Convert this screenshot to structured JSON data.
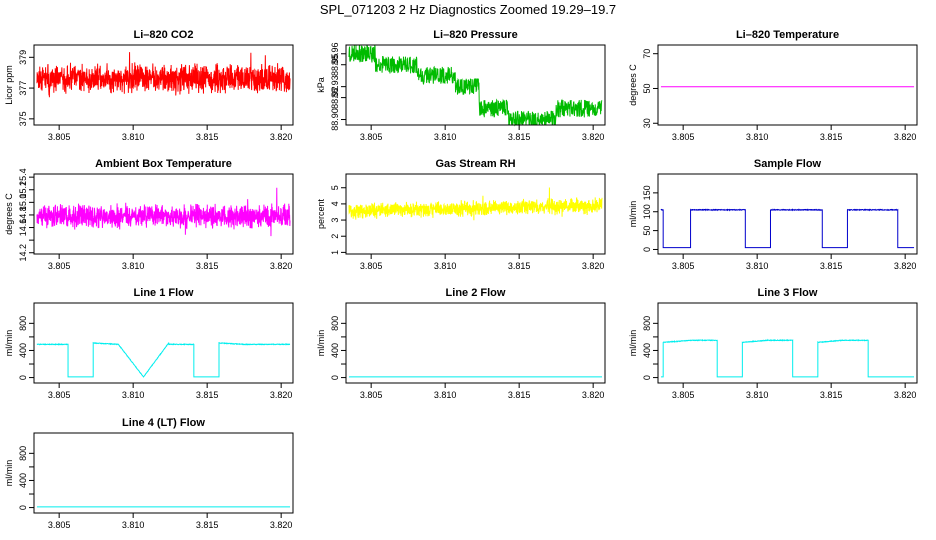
{
  "title": "SPL_071203  2 Hz Diagnostics Zoomed 19.29–19.7",
  "chart_data": [
    {
      "type": "line",
      "title": "Li–820 CO2",
      "ylabel": "Licor ppm",
      "color": "#ff0000",
      "xlim": [
        3.8033,
        3.8208
      ],
      "ylim": [
        374.6,
        379.8
      ],
      "xticks": [
        3.805,
        3.81,
        3.815,
        3.82
      ],
      "xtick_labels": [
        "3.805",
        "3.810",
        "3.815",
        "3.820"
      ],
      "yticks": [
        375,
        377,
        379
      ],
      "ytick_labels": [
        "375",
        "377",
        "379"
      ],
      "noise": {
        "mean": 377.6,
        "amp": 1.1,
        "seed": 11
      }
    },
    {
      "type": "line",
      "title": "Li–820 Pressure",
      "ylabel": "kPa",
      "color": "#00bb00",
      "xlim": [
        3.8033,
        3.8208
      ],
      "ylim": [
        88.895,
        88.968
      ],
      "xticks": [
        3.805,
        3.81,
        3.815,
        3.82
      ],
      "xtick_labels": [
        "3.805",
        "3.810",
        "3.815",
        "3.820"
      ],
      "yticks": [
        88.9,
        88.92,
        88.93,
        88.95,
        88.96
      ],
      "ytick_labels": [
        "88.90",
        "88.92",
        "88.93",
        "88.95",
        "88.96"
      ],
      "steps": [
        [
          3.8035,
          3.8053,
          88.96
        ],
        [
          3.8053,
          3.8081,
          88.95
        ],
        [
          3.8081,
          3.8107,
          88.94
        ],
        [
          3.8107,
          3.8123,
          88.93
        ],
        [
          3.8123,
          3.8143,
          88.91
        ],
        [
          3.8143,
          3.8175,
          88.9
        ],
        [
          3.8175,
          3.8206,
          88.91
        ]
      ],
      "noise": {
        "amp": 0.008,
        "seed": 23
      }
    },
    {
      "type": "line",
      "title": "Li–820 Temperature",
      "ylabel": "degrees C",
      "color": "#ff00ff",
      "xlim": [
        3.8033,
        3.8208
      ],
      "ylim": [
        29,
        75
      ],
      "xticks": [
        3.805,
        3.81,
        3.815,
        3.82
      ],
      "xtick_labels": [
        "3.805",
        "3.810",
        "3.815",
        "3.820"
      ],
      "yticks": [
        30,
        50,
        70
      ],
      "ytick_labels": [
        "30",
        "50",
        "70"
      ],
      "x": [
        3.8035,
        3.8206
      ],
      "y": [
        51,
        51
      ]
    },
    {
      "type": "line",
      "title": "Ambient Box Temperature",
      "ylabel": "degrees C",
      "color": "#ff00ff",
      "xlim": [
        3.8033,
        3.8208
      ],
      "ylim": [
        14.18,
        15.45
      ],
      "xticks": [
        3.805,
        3.81,
        3.815,
        3.82
      ],
      "xtick_labels": [
        "3.805",
        "3.810",
        "3.815",
        "3.820"
      ],
      "yticks": [
        14.2,
        14.4,
        14.6,
        14.8,
        15.0,
        15.2,
        15.4
      ],
      "ytick_labels": [
        "14.2",
        "",
        "14.6",
        "14.8",
        "15.0",
        "15.2",
        "15.4"
      ],
      "noise": {
        "mean": 14.78,
        "amp": 0.22,
        "seed": 37
      }
    },
    {
      "type": "line",
      "title": "Gas Stream RH",
      "ylabel": "percent",
      "color": "#ffff00",
      "xlim": [
        3.8033,
        3.8208
      ],
      "ylim": [
        0.9,
        5.85
      ],
      "xticks": [
        3.805,
        3.81,
        3.815,
        3.82
      ],
      "xtick_labels": [
        "3.805",
        "3.810",
        "3.815",
        "3.820"
      ],
      "yticks": [
        1,
        2,
        3,
        4,
        5
      ],
      "ytick_labels": [
        "1",
        "2",
        "3",
        "4",
        "5"
      ],
      "noise": {
        "mean": 3.55,
        "trend": 0.35,
        "amp": 0.55,
        "seed": 51
      }
    },
    {
      "type": "line",
      "title": "Sample Flow",
      "ylabel": "ml/min",
      "color": "#0000cc",
      "xlim": [
        3.8033,
        3.8208
      ],
      "ylim": [
        -12,
        200
      ],
      "xticks": [
        3.805,
        3.81,
        3.815,
        3.82
      ],
      "xtick_labels": [
        "3.805",
        "3.810",
        "3.815",
        "3.820"
      ],
      "yticks": [
        0,
        50,
        100,
        150
      ],
      "ytick_labels": [
        "0",
        "50",
        "100",
        "150"
      ],
      "x": [
        3.8035,
        3.80365,
        3.80365,
        3.8055,
        3.8055,
        3.8092,
        3.8092,
        3.8109,
        3.8109,
        3.8144,
        3.8144,
        3.8161,
        3.8161,
        3.8195,
        3.8195,
        3.8206
      ],
      "y": [
        105,
        105,
        5,
        5,
        105,
        105,
        5,
        5,
        105,
        105,
        5,
        5,
        105,
        105,
        5,
        5
      ],
      "noise": {
        "amp": 2,
        "seed": 61
      }
    },
    {
      "type": "line",
      "title": "Line 1 Flow",
      "ylabel": "ml/min",
      "color": "#00eeee",
      "xlim": [
        3.8033,
        3.8208
      ],
      "ylim": [
        -80,
        1100
      ],
      "xticks": [
        3.805,
        3.81,
        3.815,
        3.82
      ],
      "xtick_labels": [
        "3.805",
        "3.810",
        "3.815",
        "3.820"
      ],
      "yticks": [
        0,
        200,
        400,
        600,
        800
      ],
      "ytick_labels": [
        "0",
        "",
        "400",
        "",
        "800"
      ],
      "x": [
        3.8035,
        3.8056,
        3.8056,
        3.8073,
        3.8073,
        3.809,
        3.809,
        3.8107,
        3.8107,
        3.8124,
        3.8124,
        3.8141,
        3.8141,
        3.8158,
        3.8158,
        3.8175,
        3.8175,
        3.8206
      ],
      "y": [
        490,
        490,
        10,
        10,
        510,
        490,
        490,
        10,
        10,
        510,
        490,
        490,
        10,
        10,
        510,
        490,
        490,
        490
      ],
      "noise": {
        "amp": 10,
        "seed": 71
      }
    },
    {
      "type": "line",
      "title": "Line 2 Flow",
      "ylabel": "ml/min",
      "color": "#00eeee",
      "xlim": [
        3.8033,
        3.8208
      ],
      "ylim": [
        -80,
        1100
      ],
      "xticks": [
        3.805,
        3.81,
        3.815,
        3.82
      ],
      "xtick_labels": [
        "3.805",
        "3.810",
        "3.815",
        "3.820"
      ],
      "yticks": [
        0,
        200,
        400,
        600,
        800
      ],
      "ytick_labels": [
        "0",
        "",
        "400",
        "",
        "800"
      ],
      "x": [
        3.8035,
        3.8206
      ],
      "y": [
        10,
        10
      ]
    },
    {
      "type": "line",
      "title": "Line 3 Flow",
      "ylabel": "ml/min",
      "color": "#00eeee",
      "xlim": [
        3.8033,
        3.8208
      ],
      "ylim": [
        -80,
        1100
      ],
      "xticks": [
        3.805,
        3.81,
        3.815,
        3.82
      ],
      "xtick_labels": [
        "3.805",
        "3.810",
        "3.815",
        "3.820"
      ],
      "yticks": [
        0,
        200,
        400,
        600,
        800
      ],
      "ytick_labels": [
        "0",
        "",
        "400",
        "",
        "800"
      ],
      "x": [
        3.8035,
        3.80365,
        3.80365,
        3.8056,
        3.8056,
        3.8073,
        3.8073,
        3.809,
        3.809,
        3.8107,
        3.8107,
        3.8124,
        3.8124,
        3.8141,
        3.8141,
        3.8158,
        3.8158,
        3.8175,
        3.8175,
        3.8206
      ],
      "y": [
        10,
        10,
        520,
        550,
        550,
        550,
        10,
        10,
        520,
        550,
        550,
        550,
        10,
        10,
        520,
        550,
        550,
        550,
        10,
        10
      ],
      "noise": {
        "amp": 10,
        "seed": 83
      }
    },
    {
      "type": "line",
      "title": "Line 4 (LT) Flow",
      "ylabel": "ml/min",
      "color": "#00eeee",
      "xlim": [
        3.8033,
        3.8208
      ],
      "ylim": [
        -80,
        1100
      ],
      "xticks": [
        3.805,
        3.81,
        3.815,
        3.82
      ],
      "xtick_labels": [
        "3.805",
        "3.810",
        "3.815",
        "3.820"
      ],
      "yticks": [
        0,
        200,
        400,
        600,
        800
      ],
      "ytick_labels": [
        "0",
        "",
        "400",
        "",
        "800"
      ],
      "x": [
        3.8035,
        3.8206
      ],
      "y": [
        10,
        10
      ]
    }
  ]
}
